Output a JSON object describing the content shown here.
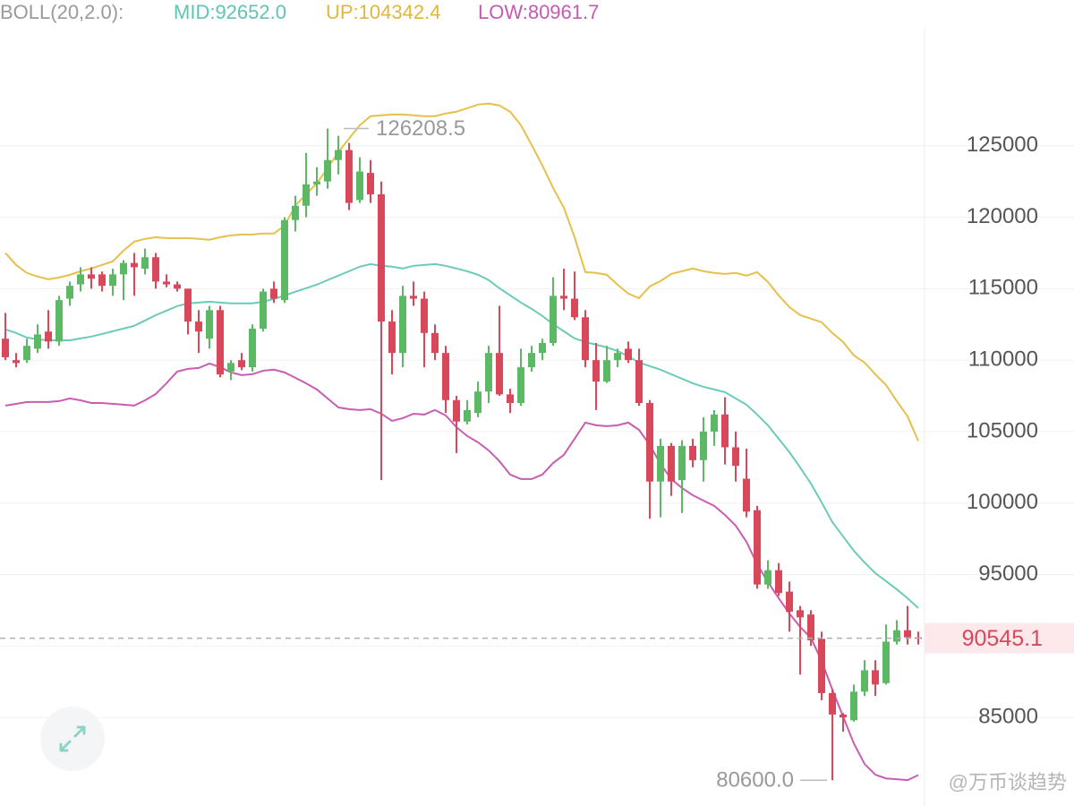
{
  "chart_data": {
    "type": "candlestick",
    "legend_text": {
      "indicator": "BOLL(20,2.0):",
      "mid": "MID:92652.0",
      "up": "UP:104342.4",
      "low": "LOW:80961.7"
    },
    "up_color": "#5cb865",
    "down_color": "#d9485a",
    "open": [
      111500,
      110000,
      110000,
      110800,
      112000,
      111300,
      114300,
      115300,
      116000,
      116000,
      115200,
      116000,
      116800,
      116400,
      117200,
      115500,
      115300,
      115000,
      112700,
      111500,
      113500,
      109200,
      110000,
      109500,
      112200,
      115000,
      114200,
      119800,
      120800,
      122300,
      122500,
      124000,
      124700,
      121200,
      123100,
      121600,
      112700,
      110500,
      114500,
      114300,
      111900,
      110500,
      107200,
      105700,
      106300,
      107800,
      110500,
      107600,
      107000,
      109500,
      110500,
      111200,
      114500,
      114300,
      113000,
      110000,
      108500,
      110000,
      110800,
      110000,
      107000,
      101500,
      104000,
      101600,
      104000,
      103000,
      105000,
      106200,
      103900,
      101700,
      99500,
      94300,
      95300,
      93800,
      92500,
      92200,
      90500,
      86700,
      85200,
      84800,
      86800,
      88300,
      87400,
      90300,
      91100,
      90600
    ],
    "high": [
      113300,
      110500,
      111500,
      112500,
      113500,
      114500,
      115500,
      116500,
      116500,
      116200,
      116400,
      117000,
      117500,
      117800,
      117500,
      116000,
      115500,
      115000,
      113500,
      113800,
      113800,
      110000,
      110500,
      112500,
      115000,
      115500,
      120000,
      121500,
      124500,
      123500,
      126208.5,
      125700,
      125200,
      124200,
      124000,
      122500,
      113500,
      115200,
      115500,
      114800,
      112500,
      111000,
      107500,
      107200,
      108500,
      111000,
      113800,
      108000,
      110800,
      111000,
      111500,
      115800,
      116400,
      116200,
      113500,
      111200,
      111000,
      110800,
      111300,
      110800,
      107200,
      104500,
      104200,
      104400,
      104500,
      106000,
      106500,
      107400,
      105000,
      103800,
      99800,
      96000,
      95800,
      94500,
      92800,
      92500,
      91000,
      87000,
      85300,
      87300,
      89000,
      89000,
      91500,
      91800,
      92800,
      91000
    ],
    "low": [
      110000,
      109500,
      109800,
      110500,
      110800,
      111000,
      113800,
      114800,
      115000,
      114800,
      114500,
      114200,
      114500,
      116000,
      115000,
      115100,
      114800,
      111800,
      110500,
      110800,
      108800,
      108600,
      109300,
      109200,
      112000,
      114000,
      114000,
      119000,
      120000,
      121500,
      122000,
      123000,
      120500,
      121000,
      121000,
      101600,
      109000,
      109500,
      113800,
      109500,
      110000,
      106300,
      103500,
      105500,
      106000,
      107000,
      107500,
      106300,
      106800,
      109200,
      110000,
      111000,
      113500,
      112800,
      109500,
      106500,
      108400,
      109500,
      109800,
      106800,
      98900,
      99000,
      100500,
      99300,
      102500,
      101500,
      104000,
      102700,
      101500,
      99000,
      94000,
      94000,
      93500,
      91000,
      88000,
      90000,
      86200,
      80600,
      84000,
      84700,
      86500,
      86500,
      87300,
      90100,
      90100,
      90100
    ],
    "close": [
      110200,
      109800,
      111000,
      111800,
      111300,
      114200,
      115200,
      116000,
      115700,
      115200,
      116000,
      116800,
      116500,
      117200,
      115500,
      115300,
      115000,
      112700,
      112000,
      113500,
      109000,
      109800,
      109500,
      112200,
      114800,
      114300,
      119800,
      120800,
      122300,
      122500,
      124000,
      124700,
      121000,
      123200,
      121600,
      112700,
      110500,
      114500,
      114300,
      111900,
      110500,
      107200,
      105700,
      106500,
      107800,
      110500,
      107600,
      107000,
      109500,
      110500,
      111200,
      114500,
      114300,
      113000,
      110000,
      108500,
      110000,
      110500,
      110000,
      107000,
      101500,
      104000,
      101500,
      104000,
      103000,
      105000,
      106200,
      103900,
      102600,
      99400,
      94300,
      95300,
      93700,
      92400,
      92000,
      90400,
      86700,
      85200,
      85000,
      86800,
      88300,
      87300,
      90300,
      91100,
      90600,
      90545.1
    ],
    "bands": {
      "upper": {
        "color": "#e6c04a",
        "values": [
          117500,
          116660,
          116100,
          115850,
          115660,
          115780,
          115970,
          116220,
          116410,
          116660,
          116910,
          117660,
          118290,
          118480,
          118600,
          118540,
          118540,
          118540,
          118480,
          118420,
          118600,
          118730,
          118790,
          118790,
          118860,
          118860,
          119420,
          120800,
          121610,
          122370,
          123430,
          124560,
          125500,
          126440,
          127070,
          127130,
          127190,
          127190,
          127130,
          127070,
          127070,
          127260,
          127380,
          127630,
          127880,
          127950,
          127820,
          127380,
          126440,
          125060,
          123620,
          122050,
          120670,
          118600,
          116160,
          116100,
          115970,
          115280,
          114650,
          114340,
          115160,
          115530,
          116030,
          116220,
          116410,
          116220,
          116100,
          116030,
          116100,
          115910,
          116160,
          115470,
          114530,
          113710,
          113150,
          112900,
          112650,
          111900,
          111270,
          110330,
          109830,
          109010,
          108260,
          107130,
          106070,
          104342.4
        ]
      },
      "mid": {
        "color": "#6ccab9",
        "values": [
          112150,
          111900,
          111580,
          111460,
          111390,
          111390,
          111390,
          111520,
          111650,
          111830,
          112020,
          112210,
          112400,
          112770,
          113150,
          113460,
          113780,
          113970,
          114030,
          114090,
          114030,
          113970,
          113970,
          113970,
          114090,
          114280,
          114530,
          114780,
          115030,
          115280,
          115600,
          115910,
          116220,
          116540,
          116720,
          116600,
          116540,
          116410,
          116600,
          116660,
          116720,
          116600,
          116410,
          116220,
          115970,
          115600,
          115030,
          114530,
          114030,
          113590,
          113090,
          112520,
          112020,
          111520,
          111270,
          111080,
          110890,
          110640,
          110270,
          109830,
          109580,
          109330,
          109010,
          108700,
          108380,
          108130,
          107950,
          107760,
          107320,
          106880,
          106190,
          105440,
          104500,
          103560,
          102490,
          101360,
          100050,
          98670,
          97660,
          96660,
          95840,
          95090,
          94530,
          93960,
          93340,
          92652
        ]
      },
      "lower": {
        "color": "#c95cb3",
        "values": [
          106820,
          106940,
          107070,
          107070,
          107070,
          107130,
          107320,
          107190,
          107000,
          107000,
          106940,
          106880,
          106820,
          107190,
          107630,
          108380,
          109200,
          109390,
          109450,
          109760,
          109510,
          109140,
          108950,
          109010,
          109260,
          109330,
          109140,
          108760,
          108380,
          107950,
          107320,
          106690,
          106570,
          106510,
          106570,
          106250,
          105750,
          105940,
          106250,
          106190,
          106510,
          106130,
          105310,
          104690,
          104250,
          103680,
          102930,
          101990,
          101680,
          101680,
          101990,
          102800,
          103370,
          104500,
          105630,
          105440,
          105380,
          105440,
          105630,
          105120,
          104060,
          102740,
          101680,
          101050,
          100550,
          100170,
          99800,
          99170,
          98420,
          97290,
          95720,
          94470,
          93340,
          92270,
          91330,
          90580,
          88950,
          86940,
          85060,
          83180,
          81740,
          80990,
          80730,
          80670,
          80610,
          80961.7
        ]
      }
    },
    "max_label": 126208.5,
    "min_label": {
      "value": 80600,
      "label": "80600.0"
    },
    "last_price": 90545.1,
    "ylim": [
      78800,
      135200
    ],
    "yticks": [
      85000,
      90000,
      95000,
      100000,
      105000,
      110000,
      115000,
      120000,
      125000
    ],
    "grid": true,
    "watermark": "@万币谈趋势"
  }
}
